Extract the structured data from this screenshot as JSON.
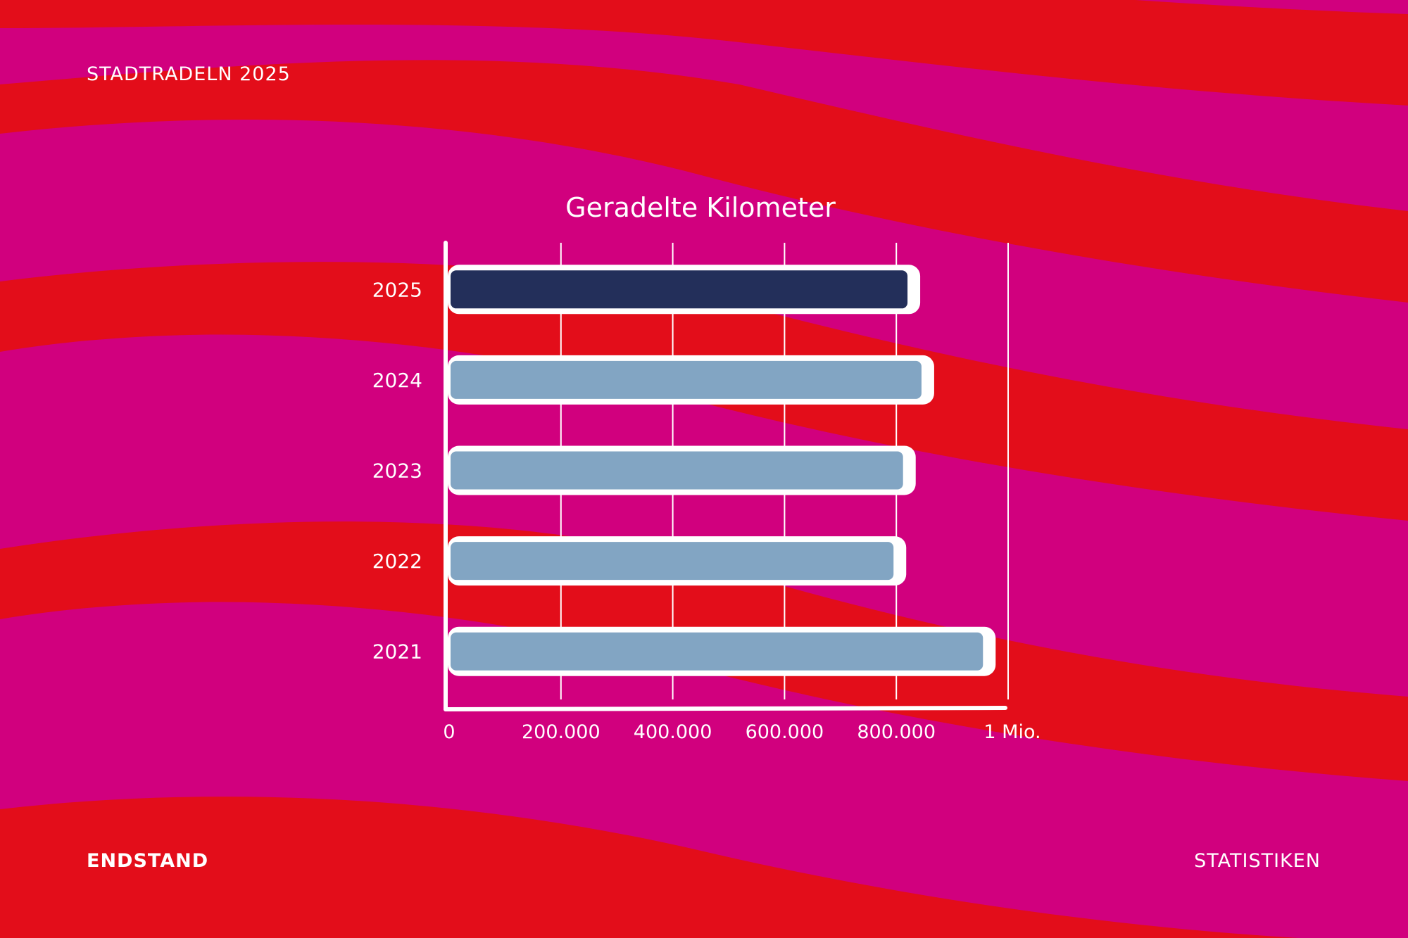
{
  "header": {
    "brand": "STADTRADELN 2025"
  },
  "footer": {
    "left_label": "ENDSTAND",
    "right_label": "STATISTIKEN"
  },
  "colors": {
    "background_magenta": "#d1007e",
    "background_red": "#e30d1a",
    "bar_highlight": "#232f5a",
    "bar_default": "#82a5c3",
    "outline": "#ffffff"
  },
  "chart_data": {
    "type": "bar",
    "orientation": "horizontal",
    "title": "Geradelte Kilometer",
    "categories": [
      "2025",
      "2024",
      "2023",
      "2022",
      "2021"
    ],
    "values": [
      820000,
      845000,
      812000,
      795000,
      955000
    ],
    "highlight_category": "2025",
    "xlim": [
      0,
      1000000
    ],
    "xticks": [
      {
        "value": 0,
        "label": "0"
      },
      {
        "value": 200000,
        "label": "200.000"
      },
      {
        "value": 400000,
        "label": "400.000"
      },
      {
        "value": 600000,
        "label": "600.000"
      },
      {
        "value": 800000,
        "label": "800.000"
      },
      {
        "value": 1000000,
        "label": "1 Mio."
      }
    ],
    "grid": true,
    "xlabel": "",
    "ylabel": ""
  }
}
